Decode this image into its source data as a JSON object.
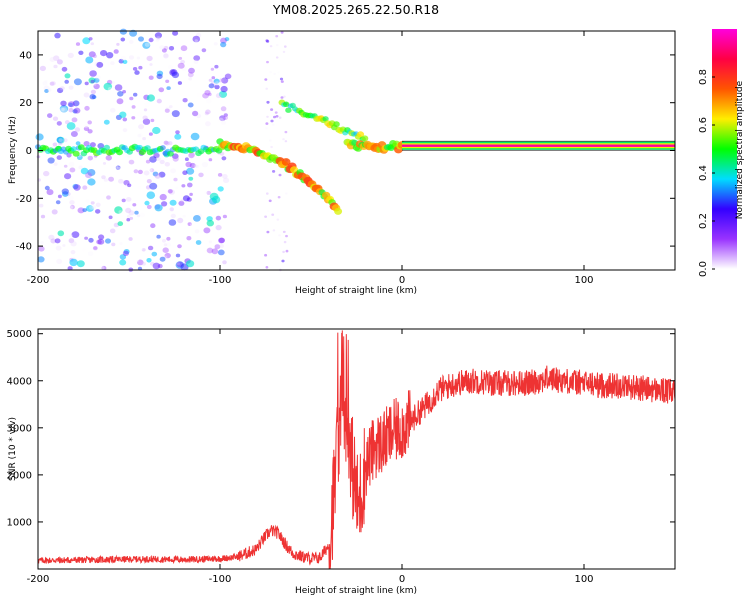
{
  "title": "YM08.2025.265.22.50.R18",
  "chart_data": [
    {
      "type": "heatmap",
      "name": "spectrogram",
      "xlabel": "Height of straight line (km)",
      "ylabel": "Frequency (Hz)",
      "xlim": [
        -200,
        150
      ],
      "ylim": [
        -50,
        50
      ],
      "x_ticks": [
        -200,
        -100,
        0,
        100
      ],
      "x_tick_labels": [
        "-200",
        "-100",
        "0",
        "100"
      ],
      "y_ticks": [
        -40,
        -20,
        0,
        20,
        40
      ],
      "y_tick_labels": [
        "-40",
        "-20",
        "0",
        "20",
        "40"
      ],
      "colorbar": {
        "label": "Normalized spectral amplitude",
        "range": [
          0,
          1
        ],
        "ticks": [
          0.0,
          0.2,
          0.4,
          0.6,
          0.8
        ],
        "tick_labels": [
          "0.0",
          "0.2",
          "0.4",
          "0.6",
          "0.8"
        ],
        "colors": [
          "#ffffff",
          "#9933ff",
          "#3300ff",
          "#00ddff",
          "#00ff00",
          "#ffee00",
          "#ff5500",
          "#ff0044",
          "#ff00dd"
        ]
      },
      "features": [
        {
          "name": "carrier line",
          "x": [
            0,
            150
          ],
          "frequency": 2,
          "amplitude": 0.95
        },
        {
          "name": "scatter band",
          "x": [
            -200,
            -100
          ],
          "frequency": 0,
          "amplitude": 0.45
        },
        {
          "name": "descending trace",
          "x": [
            -100,
            -35
          ],
          "frequency": [
            2,
            -25
          ],
          "amplitude": 0.7
        },
        {
          "name": "ascending trace",
          "x": [
            -65,
            -20
          ],
          "frequency": [
            20,
            5
          ],
          "amplitude": 0.5
        }
      ]
    },
    {
      "type": "line",
      "name": "snr",
      "xlabel": "Height of straight line (km)",
      "ylabel": "SNR (10 * v/v)",
      "xlim": [
        -200,
        150
      ],
      "ylim": [
        0,
        5100
      ],
      "x_ticks": [
        -200,
        -100,
        0,
        100
      ],
      "x_tick_labels": [
        "-200",
        "-100",
        "0",
        "100"
      ],
      "y_ticks": [
        1000,
        2000,
        3000,
        4000,
        5000
      ],
      "y_tick_labels": [
        "1000",
        "2000",
        "3000",
        "4000",
        "5000"
      ],
      "color": "#ee3333",
      "series": [
        {
          "name": "SNR",
          "x": [
            -200,
            -180,
            -160,
            -140,
            -120,
            -100,
            -90,
            -80,
            -76,
            -72,
            -68,
            -64,
            -60,
            -55,
            -50,
            -45,
            -40,
            -36,
            -33,
            -30,
            -27,
            -24,
            -20,
            -15,
            -10,
            -5,
            0,
            5,
            10,
            15,
            20,
            30,
            40,
            50,
            60,
            70,
            80,
            90,
            100,
            110,
            120,
            130,
            140,
            150
          ],
          "y": [
            180,
            190,
            200,
            210,
            200,
            220,
            260,
            420,
            650,
            820,
            760,
            520,
            330,
            260,
            220,
            240,
            520,
            2200,
            3600,
            3300,
            2100,
            1300,
            2200,
            2600,
            2700,
            2900,
            3000,
            3150,
            3350,
            3550,
            3800,
            3950,
            4000,
            3950,
            3950,
            3950,
            4050,
            4000,
            3950,
            3900,
            3900,
            3850,
            3800,
            3750
          ]
        }
      ]
    }
  ]
}
